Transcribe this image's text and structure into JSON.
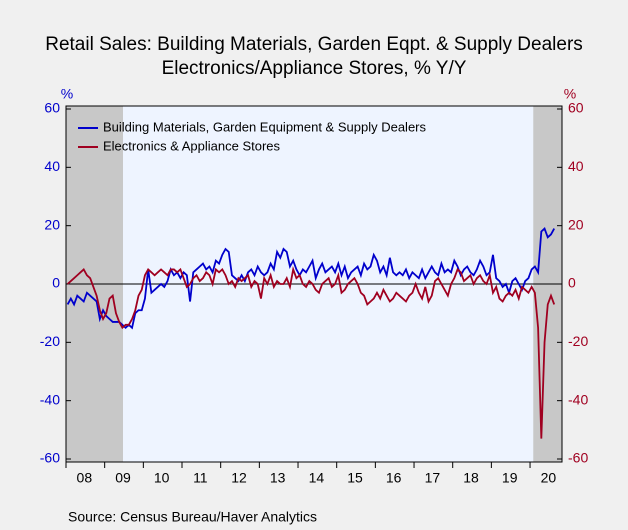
{
  "chart_data": {
    "type": "line",
    "title": "Retail Sales: Building Materials, Garden Eqpt. & Supply Dealers",
    "subtitle": "Electronics/Appliance Stores, % Y/Y",
    "y_label": "%",
    "y2_label": "%",
    "source": "Source:  Census Bureau/Haver Analytics",
    "categories": [
      null,
      null,
      null,
      null,
      null,
      "08",
      null,
      null,
      null,
      null,
      null,
      null,
      null,
      null,
      null,
      null,
      null,
      "09",
      null,
      null,
      null,
      null,
      null,
      null,
      null,
      null,
      null,
      null,
      null,
      "10",
      null,
      null,
      null,
      null,
      null,
      null,
      null,
      null,
      null,
      null,
      null,
      "11",
      null,
      null,
      null,
      null,
      null,
      null,
      null,
      null,
      null,
      null,
      null,
      "12",
      null,
      null,
      null,
      null,
      null,
      null,
      null,
      null,
      null,
      null,
      null,
      "13",
      null,
      null,
      null,
      null,
      null,
      null,
      null,
      null,
      null,
      null,
      null,
      "14",
      null,
      null,
      null,
      null,
      null,
      null,
      null,
      null,
      null,
      null,
      null,
      "15",
      null,
      null,
      null,
      null,
      null,
      null,
      null,
      null,
      null,
      null,
      null,
      "16",
      null,
      null,
      null,
      null,
      null,
      null,
      null,
      null,
      null,
      null,
      null,
      "17",
      null,
      null,
      null,
      null,
      null,
      null,
      null,
      null,
      null,
      null,
      null,
      "18",
      null,
      null,
      null,
      null,
      null,
      null,
      null,
      null,
      null,
      null,
      null,
      "19",
      null,
      null,
      null,
      null,
      null,
      null,
      null,
      null,
      null,
      null,
      null,
      "20",
      null,
      null
    ],
    "series": [
      {
        "name": "Building Materials, Garden Equipment & Supply Dealers",
        "color": "#0000cc",
        "axis": "y",
        "values": [
          -7,
          -5,
          -7,
          -4,
          -5,
          -6,
          -3,
          -4,
          -5,
          -6,
          -12,
          -9,
          -11,
          -12,
          -13,
          -13,
          -13,
          -14,
          -15,
          -14,
          -15,
          -10,
          -9,
          -9,
          -5,
          5,
          -3,
          -2,
          -1,
          0,
          -1,
          1,
          5,
          3,
          4,
          2,
          4,
          3,
          -6,
          4,
          5,
          6,
          7,
          5,
          6,
          4,
          8,
          7,
          10,
          12,
          11,
          3,
          2,
          1,
          3,
          1,
          4,
          5,
          3,
          6,
          4,
          3,
          4,
          7,
          5,
          11,
          9,
          12,
          11,
          6,
          8,
          5,
          3,
          5,
          4,
          6,
          8,
          2,
          5,
          7,
          4,
          5,
          6,
          4,
          7,
          3,
          6,
          2,
          4,
          5,
          6,
          3,
          7,
          5,
          6,
          10,
          8,
          4,
          6,
          3,
          9,
          4,
          3,
          4,
          3,
          5,
          2,
          4,
          3,
          2,
          5,
          2,
          4,
          6,
          4,
          3,
          7,
          4,
          5,
          4,
          8,
          6,
          3,
          5,
          6,
          4,
          3,
          5,
          8,
          6,
          3,
          4,
          10,
          2,
          1,
          -1,
          0,
          -3,
          1,
          2,
          0,
          -2,
          1,
          2,
          5,
          6,
          4,
          18,
          19,
          16,
          17,
          19
        ]
      },
      {
        "name": "Electronics & Appliance Stores",
        "color": "#a00020",
        "axis": "y2",
        "values": [
          0,
          1,
          2,
          3,
          4,
          5,
          3,
          2,
          -1,
          -4,
          -9,
          -12,
          -10,
          -5,
          -4,
          -10,
          -13,
          -15,
          -14,
          -14,
          -12,
          -9,
          -4,
          -2,
          3,
          5,
          4,
          3,
          4,
          5,
          4,
          3,
          5,
          5,
          4,
          5,
          2,
          -1,
          0,
          2,
          3,
          1,
          2,
          4,
          3,
          0,
          5,
          4,
          5,
          3,
          0,
          1,
          -1,
          2,
          1,
          2,
          3,
          -1,
          1,
          0,
          -5,
          2,
          0,
          3,
          -1,
          1,
          0,
          0,
          2,
          -1,
          5,
          2,
          3,
          0,
          -1,
          1,
          0,
          -2,
          -3,
          0,
          1,
          2,
          -1,
          0,
          3,
          -3,
          -2,
          0,
          1,
          2,
          0,
          -3,
          -4,
          -7,
          -6,
          -5,
          -3,
          -5,
          -2,
          -4,
          -6,
          -5,
          -3,
          -4,
          -5,
          -6,
          -4,
          -3,
          0,
          -3,
          -5,
          -1,
          -6,
          -4,
          1,
          2,
          0,
          -2,
          -4,
          0,
          2,
          5,
          4,
          1,
          2,
          3,
          0,
          2,
          3,
          1,
          0,
          3,
          -3,
          -1,
          -5,
          -6,
          -4,
          -3,
          -4,
          -2,
          -5,
          -1,
          -2,
          -3,
          -1,
          -3,
          -15,
          -53,
          -20,
          -7,
          -4,
          -7
        ]
      }
    ],
    "ylim": [
      -60,
      60
    ],
    "yticks": [
      -60,
      -40,
      -20,
      0,
      20,
      40,
      60
    ],
    "y2lim": [
      -60,
      60
    ],
    "y2ticks": [
      -60,
      -40,
      -20,
      0,
      20,
      40,
      60
    ],
    "legend": "upper left",
    "grid": false
  }
}
